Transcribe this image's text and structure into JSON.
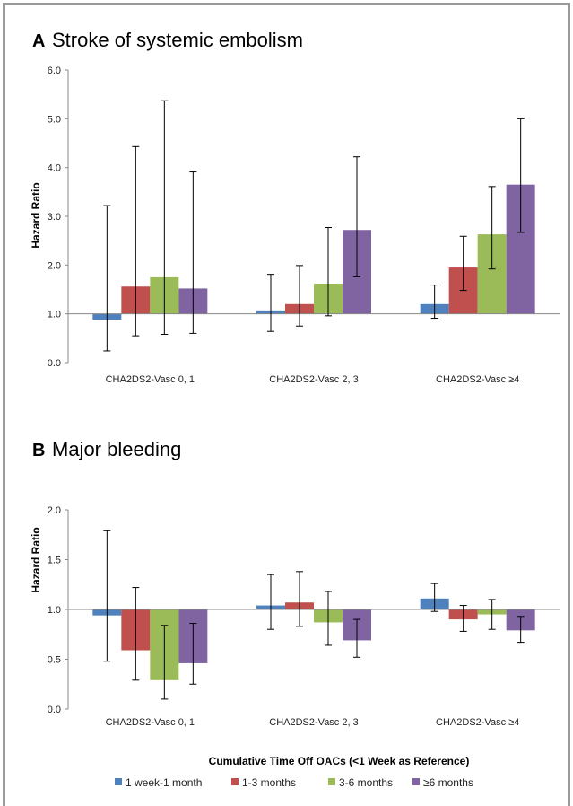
{
  "chart_data": [
    {
      "type": "bar",
      "panel_letter": "A",
      "title": "Stroke of systemic embolism",
      "ylabel": "Hazard Ratio",
      "xlabel": "",
      "ylim": [
        0,
        6
      ],
      "yticks": [
        "0.0",
        "1.0",
        "2.0",
        "3.0",
        "4.0",
        "5.0",
        "6.0"
      ],
      "ytick_values": [
        0,
        1,
        2,
        3,
        4,
        5,
        6
      ],
      "baseline": 1.0,
      "categories": [
        "CHA2DS2-Vasc 0, 1",
        "CHA2DS2-Vasc 2, 3",
        "CHA2DS2-Vasc ≥4"
      ],
      "series": [
        {
          "name": "1 week-1 month",
          "values": [
            0.88,
            1.07,
            1.2
          ],
          "lower": [
            0.24,
            0.64,
            0.91
          ],
          "upper": [
            3.22,
            1.81,
            1.59
          ]
        },
        {
          "name": "1-3 months",
          "values": [
            1.56,
            1.2,
            1.95
          ],
          "lower": [
            0.55,
            0.75,
            1.48
          ],
          "upper": [
            4.43,
            1.99,
            2.59
          ]
        },
        {
          "name": "3-6 months",
          "values": [
            1.75,
            1.62,
            2.63
          ],
          "lower": [
            0.58,
            0.96,
            1.92
          ],
          "upper": [
            5.37,
            2.77,
            3.61
          ]
        },
        {
          "name": "≥6 months",
          "values": [
            1.52,
            2.72,
            3.65
          ],
          "lower": [
            0.6,
            1.76,
            2.67
          ],
          "upper": [
            3.91,
            4.22,
            5.0
          ]
        }
      ]
    },
    {
      "type": "bar",
      "panel_letter": "B",
      "title": "Major bleeding",
      "ylabel": "Hazard Ratio",
      "xlabel": "Cumulative Time Off OACs (<1 Week as Reference)",
      "ylim": [
        0,
        2
      ],
      "yticks": [
        "0.0",
        "0.5",
        "1.0",
        "1.5",
        "2.0"
      ],
      "ytick_values": [
        0,
        0.5,
        1,
        1.5,
        2
      ],
      "baseline": 1.0,
      "categories": [
        "CHA2DS2-Vasc 0, 1",
        "CHA2DS2-Vasc 2, 3",
        "CHA2DS2-Vasc ≥4"
      ],
      "series": [
        {
          "name": "1 week-1 month",
          "values": [
            0.94,
            1.04,
            1.11
          ],
          "lower": [
            0.48,
            0.8,
            0.98
          ],
          "upper": [
            1.79,
            1.35,
            1.26
          ]
        },
        {
          "name": "1-3 months",
          "values": [
            0.59,
            1.07,
            0.9
          ],
          "lower": [
            0.29,
            0.83,
            0.78
          ],
          "upper": [
            1.22,
            1.38,
            1.04
          ]
        },
        {
          "name": "3-6 months",
          "values": [
            0.29,
            0.87,
            0.95
          ],
          "lower": [
            0.1,
            0.64,
            0.8
          ],
          "upper": [
            0.84,
            1.18,
            1.1
          ]
        },
        {
          "name": "≥6 months",
          "values": [
            0.46,
            0.69,
            0.79
          ],
          "lower": [
            0.25,
            0.52,
            0.67
          ],
          "upper": [
            0.86,
            0.9,
            0.93
          ]
        }
      ]
    }
  ],
  "legend": [
    {
      "name": "1 week-1 month",
      "color": "#4F81BD"
    },
    {
      "name": "1-3 months",
      "color": "#C0504D"
    },
    {
      "name": "3-6 months",
      "color": "#9BBB59"
    },
    {
      "name": "≥6 months",
      "color": "#8064A2"
    }
  ],
  "colors": {
    "series": [
      "#4F81BD",
      "#C0504D",
      "#9BBB59",
      "#8064A2"
    ],
    "axis": "#888888",
    "frame": "#9a9a9a"
  }
}
